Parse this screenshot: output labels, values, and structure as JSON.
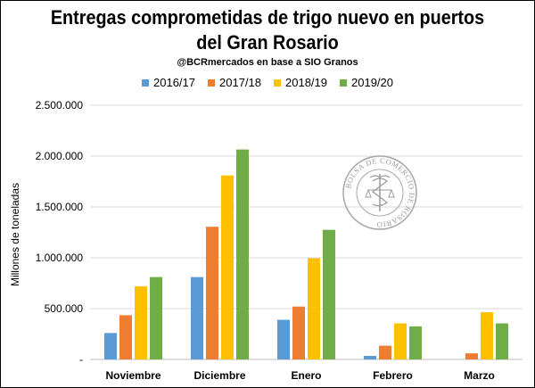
{
  "colors": {
    "2016/17": "#5b9bd5",
    "2017/18": "#ed7d31",
    "2018/19": "#ffc000",
    "2019/20": "#70ad47",
    "grid": "#d9d9d9",
    "axis": "#bfbfbf"
  },
  "seal": {
    "text": "BOLSA DE COMERCIO DE ROSARIO",
    "icon": "caduceus-seal"
  },
  "chart_data": {
    "type": "bar",
    "title_line1": "Entregas comprometidas de trigo nuevo en puertos",
    "title_line2": "del Gran Rosario",
    "subtitle": "@BCRmercados en base a SIO Granos",
    "xlabel": "",
    "ylabel": "Millones de toneladas",
    "ylim": [
      0,
      2500000
    ],
    "yticks": [
      0,
      500000,
      1000000,
      1500000,
      2000000,
      2500000
    ],
    "ytick_labels": [
      "-",
      "500.000",
      "1.000.000",
      "1.500.000",
      "2.000.000",
      "2.500.000"
    ],
    "grid": true,
    "legend_position": "top",
    "categories": [
      "Noviembre",
      "Diciembre",
      "Enero",
      "Febrero",
      "Marzo"
    ],
    "series": [
      {
        "name": "2016/17",
        "values": [
          260000,
          810000,
          390000,
          35000,
          0
        ]
      },
      {
        "name": "2017/18",
        "values": [
          435000,
          1305000,
          520000,
          135000,
          60000
        ]
      },
      {
        "name": "2018/19",
        "values": [
          720000,
          1810000,
          995000,
          355000,
          465000
        ]
      },
      {
        "name": "2019/20",
        "values": [
          810000,
          2065000,
          1275000,
          325000,
          355000
        ]
      }
    ]
  }
}
